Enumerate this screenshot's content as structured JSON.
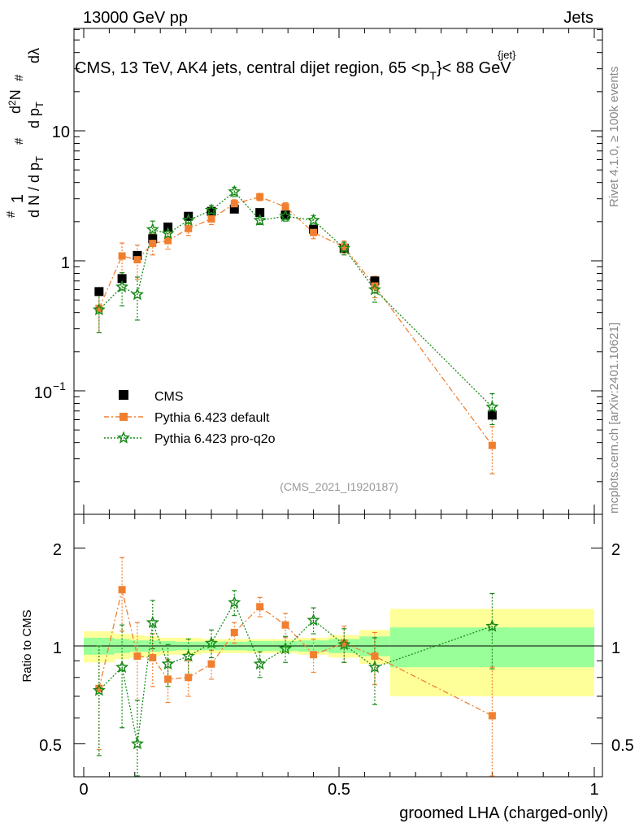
{
  "header": {
    "left": "13000 GeV pp",
    "right": "Jets",
    "side_rivet": "Rivet 4.1.0, ≥ 100k events",
    "side_mcplots": "mcplots.cern.ch [arXiv:2401.10621]",
    "analysis_tag": "(CMS_2021_I1920187)"
  },
  "title": {
    "prefix": "CMS, 13 TeV, AK4 jets, central dijet region, 65 <p",
    "sub": "T",
    "sup": "{jet}",
    "suffix": "}< 88 GeV"
  },
  "axes": {
    "ylabel_main": "1/N dN/dp_T d^2N/dp_T dλ",
    "ylabel_ratio": "Ratio to CMS",
    "xlabel": "groomed LHA (charged-only)",
    "x_ticks": [
      "0",
      "0.5",
      "1"
    ],
    "main_y_ticks": [
      "10",
      "1",
      "10"
    ],
    "main_y_tick_exp": "−1",
    "ratio_y_ticks": [
      "2",
      "1",
      "0.5"
    ]
  },
  "legend": {
    "cms": "CMS",
    "default": "Pythia 6.423 default",
    "proq2o": "Pythia 6.423 pro-q2o"
  },
  "colors": {
    "data": "#000000",
    "default": "#f08030",
    "proq2o": "#1a8a1a",
    "band_inner": "#99ff99",
    "band_outer": "#ffff99"
  },
  "chart_data": {
    "type": "scatter",
    "title": "CMS, 13 TeV, AK4 jets, central dijet region, 65 < pT < 88 GeV",
    "xlabel": "groomed LHA (charged-only)",
    "ylabel": "1/N dN/dpT d2N/dpT dλ",
    "xlim": [
      0,
      1
    ],
    "ylim_main": [
      0.015,
      60
    ],
    "ylog": true,
    "ylim_ratio": [
      0.4,
      2.3
    ],
    "x": [
      0.03,
      0.075,
      0.105,
      0.135,
      0.165,
      0.205,
      0.25,
      0.295,
      0.345,
      0.395,
      0.45,
      0.51,
      0.57,
      0.8
    ],
    "bin_edges": [
      0.0,
      0.06,
      0.09,
      0.12,
      0.15,
      0.18,
      0.23,
      0.27,
      0.32,
      0.37,
      0.42,
      0.48,
      0.54,
      0.6,
      1.0
    ],
    "series": [
      {
        "name": "CMS",
        "values": [
          0.58,
          0.73,
          1.1,
          1.48,
          1.82,
          2.2,
          2.4,
          2.5,
          2.35,
          2.25,
          1.75,
          1.25,
          0.7,
          0.065
        ],
        "band_inner": [
          0.06,
          0.05,
          0.04,
          0.04,
          0.035,
          0.03,
          0.03,
          0.03,
          0.035,
          0.035,
          0.04,
          0.05,
          0.07,
          0.14
        ],
        "band_outer": [
          0.11,
          0.09,
          0.08,
          0.07,
          0.06,
          0.06,
          0.05,
          0.05,
          0.05,
          0.05,
          0.06,
          0.08,
          0.12,
          0.3
        ]
      },
      {
        "name": "Pythia 6.423 default",
        "values": [
          0.43,
          1.09,
          1.02,
          1.36,
          1.43,
          1.77,
          2.1,
          2.75,
          3.1,
          2.6,
          1.65,
          1.28,
          0.64,
          0.038
        ],
        "errors": [
          0.15,
          0.28,
          0.3,
          0.25,
          0.2,
          0.2,
          0.2,
          0.2,
          0.2,
          0.2,
          0.17,
          0.14,
          0.12,
          0.015
        ],
        "ratio": [
          0.74,
          1.49,
          0.93,
          0.92,
          0.79,
          0.8,
          0.88,
          1.1,
          1.32,
          1.16,
          0.94,
          1.02,
          0.93,
          0.61
        ],
        "ratio_errors": [
          0.26,
          0.38,
          0.25,
          0.17,
          0.12,
          0.1,
          0.09,
          0.08,
          0.09,
          0.1,
          0.11,
          0.13,
          0.17,
          0.25
        ]
      },
      {
        "name": "Pythia 6.423 pro-q2o",
        "values": [
          0.42,
          0.63,
          0.55,
          1.74,
          1.62,
          2.05,
          2.45,
          3.4,
          2.05,
          2.2,
          2.05,
          1.25,
          0.6,
          0.075
        ],
        "errors": [
          0.14,
          0.18,
          0.2,
          0.28,
          0.22,
          0.25,
          0.22,
          0.28,
          0.15,
          0.18,
          0.18,
          0.14,
          0.12,
          0.02
        ],
        "ratio": [
          0.73,
          0.86,
          0.5,
          1.18,
          0.88,
          0.93,
          1.02,
          1.36,
          0.88,
          0.98,
          1.2,
          1.01,
          0.86,
          1.15
        ],
        "ratio_errors": [
          0.27,
          0.3,
          0.18,
          0.2,
          0.13,
          0.12,
          0.1,
          0.12,
          0.08,
          0.09,
          0.11,
          0.12,
          0.2,
          0.3
        ]
      }
    ]
  }
}
